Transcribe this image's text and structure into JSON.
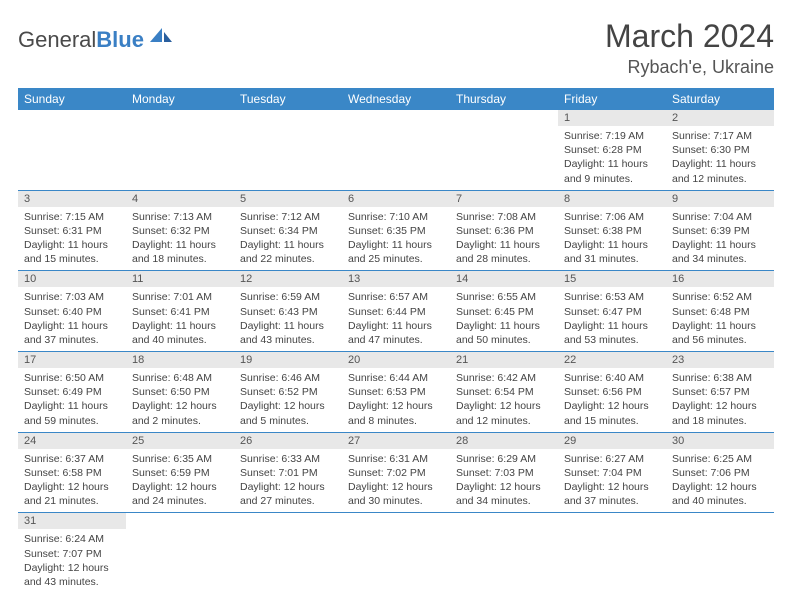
{
  "brand": {
    "part1": "General",
    "part2": "Blue"
  },
  "title": {
    "month": "March 2024",
    "location": "Rybach'e, Ukraine"
  },
  "colors": {
    "header_bg": "#3a87c7",
    "header_text": "#ffffff",
    "daynum_bg": "#e8e8e8",
    "text": "#444444",
    "rule": "#3a87c7"
  },
  "weekdays": [
    "Sunday",
    "Monday",
    "Tuesday",
    "Wednesday",
    "Thursday",
    "Friday",
    "Saturday"
  ],
  "weeks": [
    [
      null,
      null,
      null,
      null,
      null,
      {
        "n": "1",
        "sr": "Sunrise: 7:19 AM",
        "ss": "Sunset: 6:28 PM",
        "dl1": "Daylight: 11 hours",
        "dl2": "and 9 minutes."
      },
      {
        "n": "2",
        "sr": "Sunrise: 7:17 AM",
        "ss": "Sunset: 6:30 PM",
        "dl1": "Daylight: 11 hours",
        "dl2": "and 12 minutes."
      }
    ],
    [
      {
        "n": "3",
        "sr": "Sunrise: 7:15 AM",
        "ss": "Sunset: 6:31 PM",
        "dl1": "Daylight: 11 hours",
        "dl2": "and 15 minutes."
      },
      {
        "n": "4",
        "sr": "Sunrise: 7:13 AM",
        "ss": "Sunset: 6:32 PM",
        "dl1": "Daylight: 11 hours",
        "dl2": "and 18 minutes."
      },
      {
        "n": "5",
        "sr": "Sunrise: 7:12 AM",
        "ss": "Sunset: 6:34 PM",
        "dl1": "Daylight: 11 hours",
        "dl2": "and 22 minutes."
      },
      {
        "n": "6",
        "sr": "Sunrise: 7:10 AM",
        "ss": "Sunset: 6:35 PM",
        "dl1": "Daylight: 11 hours",
        "dl2": "and 25 minutes."
      },
      {
        "n": "7",
        "sr": "Sunrise: 7:08 AM",
        "ss": "Sunset: 6:36 PM",
        "dl1": "Daylight: 11 hours",
        "dl2": "and 28 minutes."
      },
      {
        "n": "8",
        "sr": "Sunrise: 7:06 AM",
        "ss": "Sunset: 6:38 PM",
        "dl1": "Daylight: 11 hours",
        "dl2": "and 31 minutes."
      },
      {
        "n": "9",
        "sr": "Sunrise: 7:04 AM",
        "ss": "Sunset: 6:39 PM",
        "dl1": "Daylight: 11 hours",
        "dl2": "and 34 minutes."
      }
    ],
    [
      {
        "n": "10",
        "sr": "Sunrise: 7:03 AM",
        "ss": "Sunset: 6:40 PM",
        "dl1": "Daylight: 11 hours",
        "dl2": "and 37 minutes."
      },
      {
        "n": "11",
        "sr": "Sunrise: 7:01 AM",
        "ss": "Sunset: 6:41 PM",
        "dl1": "Daylight: 11 hours",
        "dl2": "and 40 minutes."
      },
      {
        "n": "12",
        "sr": "Sunrise: 6:59 AM",
        "ss": "Sunset: 6:43 PM",
        "dl1": "Daylight: 11 hours",
        "dl2": "and 43 minutes."
      },
      {
        "n": "13",
        "sr": "Sunrise: 6:57 AM",
        "ss": "Sunset: 6:44 PM",
        "dl1": "Daylight: 11 hours",
        "dl2": "and 47 minutes."
      },
      {
        "n": "14",
        "sr": "Sunrise: 6:55 AM",
        "ss": "Sunset: 6:45 PM",
        "dl1": "Daylight: 11 hours",
        "dl2": "and 50 minutes."
      },
      {
        "n": "15",
        "sr": "Sunrise: 6:53 AM",
        "ss": "Sunset: 6:47 PM",
        "dl1": "Daylight: 11 hours",
        "dl2": "and 53 minutes."
      },
      {
        "n": "16",
        "sr": "Sunrise: 6:52 AM",
        "ss": "Sunset: 6:48 PM",
        "dl1": "Daylight: 11 hours",
        "dl2": "and 56 minutes."
      }
    ],
    [
      {
        "n": "17",
        "sr": "Sunrise: 6:50 AM",
        "ss": "Sunset: 6:49 PM",
        "dl1": "Daylight: 11 hours",
        "dl2": "and 59 minutes."
      },
      {
        "n": "18",
        "sr": "Sunrise: 6:48 AM",
        "ss": "Sunset: 6:50 PM",
        "dl1": "Daylight: 12 hours",
        "dl2": "and 2 minutes."
      },
      {
        "n": "19",
        "sr": "Sunrise: 6:46 AM",
        "ss": "Sunset: 6:52 PM",
        "dl1": "Daylight: 12 hours",
        "dl2": "and 5 minutes."
      },
      {
        "n": "20",
        "sr": "Sunrise: 6:44 AM",
        "ss": "Sunset: 6:53 PM",
        "dl1": "Daylight: 12 hours",
        "dl2": "and 8 minutes."
      },
      {
        "n": "21",
        "sr": "Sunrise: 6:42 AM",
        "ss": "Sunset: 6:54 PM",
        "dl1": "Daylight: 12 hours",
        "dl2": "and 12 minutes."
      },
      {
        "n": "22",
        "sr": "Sunrise: 6:40 AM",
        "ss": "Sunset: 6:56 PM",
        "dl1": "Daylight: 12 hours",
        "dl2": "and 15 minutes."
      },
      {
        "n": "23",
        "sr": "Sunrise: 6:38 AM",
        "ss": "Sunset: 6:57 PM",
        "dl1": "Daylight: 12 hours",
        "dl2": "and 18 minutes."
      }
    ],
    [
      {
        "n": "24",
        "sr": "Sunrise: 6:37 AM",
        "ss": "Sunset: 6:58 PM",
        "dl1": "Daylight: 12 hours",
        "dl2": "and 21 minutes."
      },
      {
        "n": "25",
        "sr": "Sunrise: 6:35 AM",
        "ss": "Sunset: 6:59 PM",
        "dl1": "Daylight: 12 hours",
        "dl2": "and 24 minutes."
      },
      {
        "n": "26",
        "sr": "Sunrise: 6:33 AM",
        "ss": "Sunset: 7:01 PM",
        "dl1": "Daylight: 12 hours",
        "dl2": "and 27 minutes."
      },
      {
        "n": "27",
        "sr": "Sunrise: 6:31 AM",
        "ss": "Sunset: 7:02 PM",
        "dl1": "Daylight: 12 hours",
        "dl2": "and 30 minutes."
      },
      {
        "n": "28",
        "sr": "Sunrise: 6:29 AM",
        "ss": "Sunset: 7:03 PM",
        "dl1": "Daylight: 12 hours",
        "dl2": "and 34 minutes."
      },
      {
        "n": "29",
        "sr": "Sunrise: 6:27 AM",
        "ss": "Sunset: 7:04 PM",
        "dl1": "Daylight: 12 hours",
        "dl2": "and 37 minutes."
      },
      {
        "n": "30",
        "sr": "Sunrise: 6:25 AM",
        "ss": "Sunset: 7:06 PM",
        "dl1": "Daylight: 12 hours",
        "dl2": "and 40 minutes."
      }
    ],
    [
      {
        "n": "31",
        "sr": "Sunrise: 6:24 AM",
        "ss": "Sunset: 7:07 PM",
        "dl1": "Daylight: 12 hours",
        "dl2": "and 43 minutes."
      },
      null,
      null,
      null,
      null,
      null,
      null
    ]
  ]
}
